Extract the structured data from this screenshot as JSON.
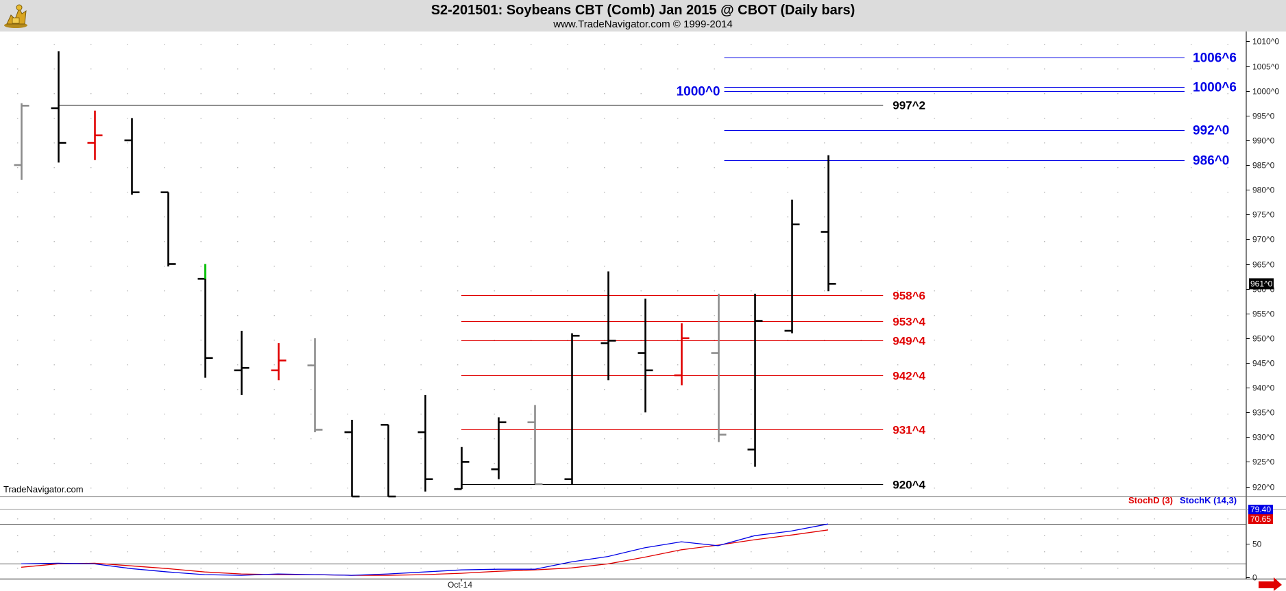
{
  "header": {
    "title": "S2-201501:  Soybeans CBT (Comb) Jan 2015 @ CBOT  (Daily bars)",
    "subtitle": "www.TradeNavigator.com © 1999-2014"
  },
  "watermark": "TradeNavigator.com",
  "colors": {
    "bar_black": "#000000",
    "bar_gray": "#8c8c8c",
    "bar_red": "#e00000",
    "bar_green": "#00cc00",
    "level_blue": "#0000e6",
    "level_red": "#e00000",
    "level_black": "#000000",
    "stoch_d": "#e00000",
    "stoch_k": "#0000e6"
  },
  "chart_data": [
    {
      "type": "ohlc",
      "name": "price",
      "ylim": [
        918,
        1012
      ],
      "yticks": [
        920,
        925,
        930,
        935,
        940,
        945,
        950,
        955,
        960,
        965,
        970,
        975,
        980,
        985,
        990,
        995,
        1000,
        1005,
        1010
      ],
      "ytick_labels": [
        "920^0",
        "925^0",
        "930^0",
        "935^0",
        "940^0",
        "945^0",
        "950^0",
        "955^0",
        "960^0",
        "965^0",
        "970^0",
        "975^0",
        "980^0",
        "985^0",
        "990^0",
        "995^0",
        "1000^0",
        "1005^0",
        "1010^0"
      ],
      "xtick_labels": [
        {
          "label": "Oct-14",
          "bar": 12
        }
      ],
      "bars": [
        {
          "o": 985,
          "h": 997.5,
          "l": 982,
          "c": 997,
          "color": "gray"
        },
        {
          "o": 996.5,
          "h": 1008,
          "l": 985.5,
          "c": 989.5,
          "color": "black"
        },
        {
          "o": 989.5,
          "h": 996,
          "l": 986,
          "c": 991,
          "color": "red"
        },
        {
          "o": 990,
          "h": 994.5,
          "l": 979,
          "c": 979.5,
          "color": "black"
        },
        {
          "o": 979.5,
          "h": 979.5,
          "l": 964.5,
          "c": 965,
          "color": "black"
        },
        {
          "o": 962,
          "h": 965,
          "l": 942,
          "c": 946,
          "color": "black"
        },
        {
          "o": 943.5,
          "h": 951.5,
          "l": 938.5,
          "c": 944,
          "color": "black"
        },
        {
          "o": 943.5,
          "h": 949,
          "l": 941.5,
          "c": 945.5,
          "color": "red"
        },
        {
          "o": 944.5,
          "h": 950,
          "l": 931,
          "c": 931.5,
          "color": "gray"
        },
        {
          "o": 931,
          "h": 933.5,
          "l": 918,
          "c": 918,
          "color": "black"
        },
        {
          "o": 932.5,
          "h": 932.5,
          "l": 918,
          "c": 918,
          "color": "black"
        },
        {
          "o": 931,
          "h": 938.5,
          "l": 919,
          "c": 921.5,
          "color": "black"
        },
        {
          "o": 919.5,
          "h": 928,
          "l": 919.5,
          "c": 925,
          "color": "black"
        },
        {
          "o": 923.5,
          "h": 934,
          "l": 921.5,
          "c": 933,
          "color": "black"
        },
        {
          "o": 933,
          "h": 936.5,
          "l": 920.5,
          "c": 920.5,
          "color": "gray"
        },
        {
          "o": 921.5,
          "h": 951,
          "l": 920.5,
          "c": 950.5,
          "color": "black"
        },
        {
          "o": 949,
          "h": 963.5,
          "l": 941.5,
          "c": 949.5,
          "color": "black"
        },
        {
          "o": 947,
          "h": 958,
          "l": 935,
          "c": 943.5,
          "color": "black"
        },
        {
          "o": 942.5,
          "h": 953,
          "l": 940.5,
          "c": 950,
          "color": "red"
        },
        {
          "o": 947,
          "h": 959,
          "l": 929,
          "c": 930.5,
          "color": "gray"
        },
        {
          "o": 927.5,
          "h": 959,
          "l": 924,
          "c": 953.5,
          "color": "black"
        },
        {
          "o": 951.5,
          "h": 978,
          "l": 951,
          "c": 973,
          "color": "black"
        },
        {
          "o": 971.5,
          "h": 987,
          "l": 959.5,
          "c": 961,
          "color": "black"
        }
      ],
      "first_tick_color_bar": 5,
      "first_tick_color": "green",
      "last_price_label": "961^0",
      "levels": [
        {
          "label": "1006^6",
          "value": 1006.75,
          "color": "blue",
          "from_bar": 19,
          "label_side": "right"
        },
        {
          "label": "1000^6",
          "value": 1000.75,
          "color": "blue",
          "from_bar": 19,
          "label_side": "right"
        },
        {
          "label": "1000^0",
          "value": 1000,
          "color": "blue",
          "from_bar": 19,
          "label_side": "left"
        },
        {
          "label": "997^2",
          "value": 997.25,
          "color": "black",
          "from_bar": 1,
          "to_bar": 23.5,
          "label_side": "end"
        },
        {
          "label": "992^0",
          "value": 992,
          "color": "blue",
          "from_bar": 19,
          "label_side": "right"
        },
        {
          "label": "986^0",
          "value": 986,
          "color": "blue",
          "from_bar": 19,
          "label_side": "right"
        },
        {
          "label": "958^6",
          "value": 958.75,
          "color": "red",
          "from_bar": 12,
          "to_bar": 23.5,
          "label_side": "end"
        },
        {
          "label": "953^4",
          "value": 953.5,
          "color": "red",
          "from_bar": 12,
          "to_bar": 23.5,
          "label_side": "end"
        },
        {
          "label": "949^4",
          "value": 949.5,
          "color": "red",
          "from_bar": 12,
          "to_bar": 23.5,
          "label_side": "end"
        },
        {
          "label": "942^4",
          "value": 942.5,
          "color": "red",
          "from_bar": 12,
          "to_bar": 23.5,
          "label_side": "end"
        },
        {
          "label": "931^4",
          "value": 931.5,
          "color": "red",
          "from_bar": 12,
          "to_bar": 23.5,
          "label_side": "end"
        },
        {
          "label": "920^4",
          "value": 920.5,
          "color": "black",
          "from_bar": 12,
          "to_bar": 23.5,
          "label_side": "end"
        }
      ]
    },
    {
      "type": "line",
      "name": "stochastic",
      "ylim": [
        0,
        100
      ],
      "yticks": [
        0,
        50
      ],
      "ytick_labels": [
        "0",
        "50"
      ],
      "ref_lines": [
        80,
        20
      ],
      "series": [
        {
          "name": "StochD (3)",
          "color": "red",
          "last_label": "70.65",
          "values": [
            15,
            20,
            21,
            17,
            13,
            8,
            5,
            4,
            4,
            3,
            3,
            4,
            6,
            9,
            11,
            14,
            20,
            30,
            41,
            48,
            56,
            63,
            70.65
          ]
        },
        {
          "name": "StochK (14,3)",
          "color": "blue",
          "last_label": "79.40",
          "values": [
            20,
            21,
            20,
            13,
            8,
            4,
            3,
            5,
            4,
            3,
            5,
            8,
            11,
            12,
            12,
            23,
            31,
            44,
            53,
            47,
            62,
            69,
            79.4
          ]
        }
      ]
    }
  ]
}
